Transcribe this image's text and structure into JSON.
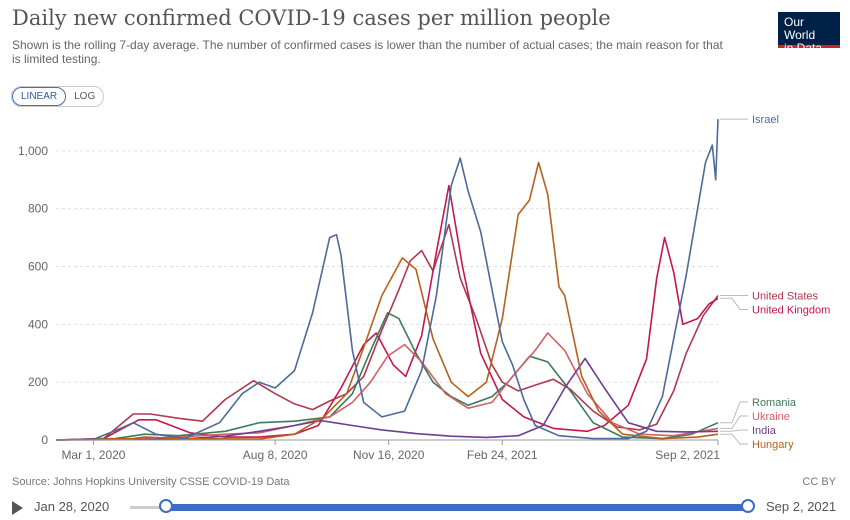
{
  "header": {
    "title": "Daily new confirmed COVID-19 cases per million people",
    "subtitle": "Shown is the rolling 7-day average. The number of confirmed cases is lower than the number of actual cases; the main reason for that is limited testing.",
    "logo_line1": "Our World",
    "logo_line2": "in Data"
  },
  "scale_toggle": {
    "linear_label": "LINEAR",
    "log_label": "LOG",
    "selected": "LINEAR"
  },
  "footer": {
    "source": "Source: Johns Hopkins University CSSE COVID-19 Data",
    "license": "CC BY"
  },
  "timeline": {
    "start_label": "Jan 28, 2020",
    "end_label": "Sep 2, 2021"
  },
  "chart_data": {
    "type": "line",
    "title": "Daily new confirmed COVID-19 cases per million people",
    "xlabel": "",
    "ylabel": "",
    "ylim": [
      0,
      1100
    ],
    "xlim": [
      "2020-01-28",
      "2021-09-02"
    ],
    "y_ticks": [
      0,
      200,
      400,
      600,
      800,
      1000
    ],
    "y_tick_labels": [
      "0",
      "200",
      "400",
      "600",
      "800",
      "1,000"
    ],
    "x_ticks": [
      "2020-03-01",
      "2020-08-08",
      "2020-11-16",
      "2021-02-24",
      "2021-09-02"
    ],
    "x_tick_labels": [
      "Mar 1, 2020",
      "Aug 8, 2020",
      "Nov 16, 2020",
      "Feb 24, 2021",
      "Sep 2, 2021"
    ],
    "grid": true,
    "legend": "right-end labels",
    "series": [
      {
        "name": "Israel",
        "color": "#4c6a9c",
        "values": [
          [
            "2020-01-28",
            0
          ],
          [
            "2020-03-01",
            2
          ],
          [
            "2020-03-25",
            40
          ],
          [
            "2020-04-05",
            60
          ],
          [
            "2020-04-25",
            20
          ],
          [
            "2020-05-20",
            5
          ],
          [
            "2020-06-20",
            60
          ],
          [
            "2020-07-10",
            160
          ],
          [
            "2020-07-25",
            200
          ],
          [
            "2020-08-08",
            180
          ],
          [
            "2020-08-25",
            240
          ],
          [
            "2020-09-10",
            440
          ],
          [
            "2020-09-25",
            700
          ],
          [
            "2020-10-01",
            710
          ],
          [
            "2020-10-05",
            640
          ],
          [
            "2020-10-15",
            310
          ],
          [
            "2020-10-25",
            130
          ],
          [
            "2020-11-10",
            80
          ],
          [
            "2020-11-30",
            100
          ],
          [
            "2020-12-15",
            240
          ],
          [
            "2020-12-28",
            500
          ],
          [
            "2021-01-10",
            880
          ],
          [
            "2021-01-18",
            975
          ],
          [
            "2021-01-25",
            860
          ],
          [
            "2021-02-05",
            720
          ],
          [
            "2021-02-15",
            520
          ],
          [
            "2021-02-24",
            340
          ],
          [
            "2021-03-05",
            260
          ],
          [
            "2021-03-15",
            140
          ],
          [
            "2021-03-25",
            50
          ],
          [
            "2021-04-15",
            15
          ],
          [
            "2021-05-15",
            5
          ],
          [
            "2021-06-15",
            5
          ],
          [
            "2021-07-01",
            30
          ],
          [
            "2021-07-15",
            150
          ],
          [
            "2021-07-25",
            350
          ],
          [
            "2021-08-05",
            570
          ],
          [
            "2021-08-15",
            800
          ],
          [
            "2021-08-22",
            960
          ],
          [
            "2021-08-28",
            1020
          ],
          [
            "2021-08-31",
            900
          ],
          [
            "2021-09-02",
            1110
          ]
        ]
      },
      {
        "name": "United States",
        "color": "#b0384f",
        "values": [
          [
            "2020-01-28",
            0
          ],
          [
            "2020-03-10",
            5
          ],
          [
            "2020-04-05",
            90
          ],
          [
            "2020-04-20",
            90
          ],
          [
            "2020-05-15",
            75
          ],
          [
            "2020-06-05",
            65
          ],
          [
            "2020-06-25",
            140
          ],
          [
            "2020-07-20",
            205
          ],
          [
            "2020-08-08",
            160
          ],
          [
            "2020-08-25",
            125
          ],
          [
            "2020-09-10",
            105
          ],
          [
            "2020-09-25",
            135
          ],
          [
            "2020-10-10",
            160
          ],
          [
            "2020-10-25",
            220
          ],
          [
            "2020-11-10",
            380
          ],
          [
            "2020-11-25",
            520
          ],
          [
            "2020-12-05",
            620
          ],
          [
            "2020-12-15",
            655
          ],
          [
            "2020-12-25",
            585
          ],
          [
            "2021-01-08",
            745
          ],
          [
            "2021-01-18",
            560
          ],
          [
            "2021-02-01",
            420
          ],
          [
            "2021-02-15",
            260
          ],
          [
            "2021-02-24",
            200
          ],
          [
            "2021-03-10",
            170
          ],
          [
            "2021-03-25",
            190
          ],
          [
            "2021-04-10",
            210
          ],
          [
            "2021-04-25",
            175
          ],
          [
            "2021-05-15",
            100
          ],
          [
            "2021-06-05",
            45
          ],
          [
            "2021-06-25",
            35
          ],
          [
            "2021-07-10",
            55
          ],
          [
            "2021-07-25",
            170
          ],
          [
            "2021-08-05",
            300
          ],
          [
            "2021-08-20",
            430
          ],
          [
            "2021-09-02",
            500
          ]
        ]
      },
      {
        "name": "United Kingdom",
        "color": "#c4174f",
        "values": [
          [
            "2020-01-28",
            0
          ],
          [
            "2020-03-10",
            5
          ],
          [
            "2020-04-10",
            70
          ],
          [
            "2020-04-25",
            70
          ],
          [
            "2020-05-25",
            25
          ],
          [
            "2020-06-25",
            10
          ],
          [
            "2020-07-25",
            10
          ],
          [
            "2020-08-25",
            20
          ],
          [
            "2020-09-15",
            50
          ],
          [
            "2020-10-05",
            180
          ],
          [
            "2020-10-25",
            330
          ],
          [
            "2020-11-05",
            370
          ],
          [
            "2020-11-20",
            260
          ],
          [
            "2020-12-01",
            220
          ],
          [
            "2020-12-15",
            360
          ],
          [
            "2020-12-28",
            650
          ],
          [
            "2021-01-08",
            880
          ],
          [
            "2021-01-20",
            600
          ],
          [
            "2021-02-05",
            300
          ],
          [
            "2021-02-24",
            140
          ],
          [
            "2021-03-15",
            80
          ],
          [
            "2021-04-10",
            40
          ],
          [
            "2021-05-10",
            30
          ],
          [
            "2021-05-25",
            50
          ],
          [
            "2021-06-15",
            120
          ],
          [
            "2021-07-01",
            280
          ],
          [
            "2021-07-10",
            560
          ],
          [
            "2021-07-17",
            700
          ],
          [
            "2021-07-25",
            580
          ],
          [
            "2021-08-02",
            400
          ],
          [
            "2021-08-15",
            420
          ],
          [
            "2021-08-25",
            470
          ],
          [
            "2021-09-02",
            490
          ]
        ]
      },
      {
        "name": "Romania",
        "color": "#3d7a5c",
        "values": [
          [
            "2020-01-28",
            0
          ],
          [
            "2020-03-20",
            5
          ],
          [
            "2020-04-15",
            20
          ],
          [
            "2020-05-15",
            15
          ],
          [
            "2020-06-25",
            30
          ],
          [
            "2020-07-25",
            60
          ],
          [
            "2020-08-25",
            65
          ],
          [
            "2020-09-25",
            80
          ],
          [
            "2020-10-15",
            160
          ],
          [
            "2020-10-30",
            300
          ],
          [
            "2020-11-15",
            440
          ],
          [
            "2020-11-25",
            420
          ],
          [
            "2020-12-10",
            300
          ],
          [
            "2020-12-25",
            200
          ],
          [
            "2021-01-10",
            150
          ],
          [
            "2021-01-25",
            120
          ],
          [
            "2021-02-15",
            150
          ],
          [
            "2021-03-01",
            200
          ],
          [
            "2021-03-20",
            290
          ],
          [
            "2021-04-05",
            270
          ],
          [
            "2021-04-25",
            170
          ],
          [
            "2021-05-15",
            60
          ],
          [
            "2021-06-10",
            10
          ],
          [
            "2021-07-15",
            5
          ],
          [
            "2021-08-10",
            20
          ],
          [
            "2021-09-02",
            60
          ]
        ]
      },
      {
        "name": "Ukraine",
        "color": "#d46067",
        "values": [
          [
            "2020-01-28",
            0
          ],
          [
            "2020-04-10",
            5
          ],
          [
            "2020-05-15",
            10
          ],
          [
            "2020-06-25",
            20
          ],
          [
            "2020-07-25",
            25
          ],
          [
            "2020-08-25",
            50
          ],
          [
            "2020-09-25",
            80
          ],
          [
            "2020-10-15",
            130
          ],
          [
            "2020-10-31",
            200
          ],
          [
            "2020-11-15",
            290
          ],
          [
            "2020-11-30",
            330
          ],
          [
            "2020-12-15",
            270
          ],
          [
            "2021-01-05",
            160
          ],
          [
            "2021-01-25",
            110
          ],
          [
            "2021-02-15",
            130
          ],
          [
            "2021-03-05",
            220
          ],
          [
            "2021-03-25",
            310
          ],
          [
            "2021-04-05",
            370
          ],
          [
            "2021-04-20",
            310
          ],
          [
            "2021-05-10",
            160
          ],
          [
            "2021-06-01",
            60
          ],
          [
            "2021-06-25",
            20
          ],
          [
            "2021-07-25",
            15
          ],
          [
            "2021-09-02",
            40
          ]
        ]
      },
      {
        "name": "India",
        "color": "#6d3e91",
        "values": [
          [
            "2020-01-28",
            0
          ],
          [
            "2020-04-15",
            1
          ],
          [
            "2020-05-25",
            5
          ],
          [
            "2020-06-25",
            13
          ],
          [
            "2020-07-25",
            30
          ],
          [
            "2020-08-25",
            50
          ],
          [
            "2020-09-17",
            67
          ],
          [
            "2020-10-15",
            50
          ],
          [
            "2020-11-10",
            35
          ],
          [
            "2020-12-10",
            22
          ],
          [
            "2021-01-10",
            13
          ],
          [
            "2021-02-10",
            9
          ],
          [
            "2021-03-10",
            15
          ],
          [
            "2021-04-01",
            50
          ],
          [
            "2021-04-20",
            180
          ],
          [
            "2021-05-08",
            282
          ],
          [
            "2021-05-25",
            180
          ],
          [
            "2021-06-15",
            60
          ],
          [
            "2021-07-10",
            30
          ],
          [
            "2021-08-05",
            28
          ],
          [
            "2021-09-02",
            30
          ]
        ]
      },
      {
        "name": "Hungary",
        "color": "#b6611d",
        "values": [
          [
            "2020-01-28",
            0
          ],
          [
            "2020-04-05",
            5
          ],
          [
            "2020-04-15",
            10
          ],
          [
            "2020-05-15",
            5
          ],
          [
            "2020-07-25",
            3
          ],
          [
            "2020-08-25",
            20
          ],
          [
            "2020-09-20",
            80
          ],
          [
            "2020-10-10",
            160
          ],
          [
            "2020-10-25",
            320
          ],
          [
            "2020-11-10",
            500
          ],
          [
            "2020-11-28",
            630
          ],
          [
            "2020-12-10",
            590
          ],
          [
            "2020-12-25",
            350
          ],
          [
            "2021-01-10",
            200
          ],
          [
            "2021-01-25",
            150
          ],
          [
            "2021-02-10",
            200
          ],
          [
            "2021-02-24",
            420
          ],
          [
            "2021-03-10",
            780
          ],
          [
            "2021-03-20",
            830
          ],
          [
            "2021-03-28",
            960
          ],
          [
            "2021-04-05",
            850
          ],
          [
            "2021-04-15",
            530
          ],
          [
            "2021-04-20",
            500
          ],
          [
            "2021-05-05",
            220
          ],
          [
            "2021-05-20",
            100
          ],
          [
            "2021-06-10",
            20
          ],
          [
            "2021-07-15",
            5
          ],
          [
            "2021-08-15",
            10
          ],
          [
            "2021-09-02",
            20
          ]
        ]
      }
    ]
  }
}
